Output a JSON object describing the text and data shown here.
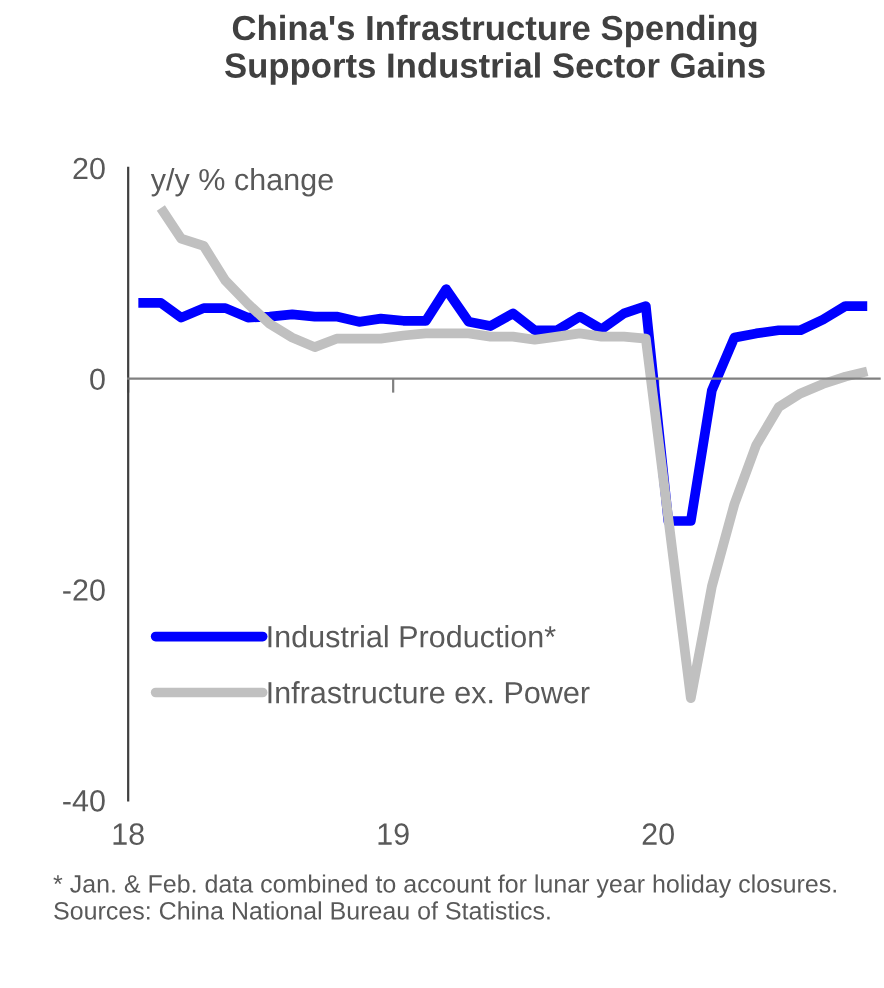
{
  "chart_data": {
    "type": "line",
    "title": "China's Infrastructure Spending\nSupports Industrial Sector Gains",
    "ylabel": "y/y % change",
    "annotations": [
      "* Jan. & Feb. data combined to account for lunar year holiday closures. Sources: China National Bureau of Statistics."
    ],
    "x": [
      "2018-01-15",
      "2018-02-15",
      "2018-03-15",
      "2018-04-15",
      "2018-05-15",
      "2018-06-15",
      "2018-07-15",
      "2018-08-15",
      "2018-09-15",
      "2018-10-15",
      "2018-11-15",
      "2018-12-15",
      "2019-01-15",
      "2019-02-15",
      "2019-03-15",
      "2019-04-15",
      "2019-05-15",
      "2019-06-15",
      "2019-07-15",
      "2019-08-15",
      "2019-09-15",
      "2019-10-15",
      "2019-11-15",
      "2019-12-15",
      "2020-01-15",
      "2020-02-15",
      "2020-03-15",
      "2020-04-15",
      "2020-05-15",
      "2020-06-15",
      "2020-07-15",
      "2020-08-15",
      "2020-09-15",
      "2020-10-15"
    ],
    "series": [
      {
        "name": "Industrial Production*",
        "color": "#0000ff",
        "values": [
          7.2,
          7.2,
          5.8,
          6.7,
          6.7,
          5.8,
          5.9,
          6.1,
          5.9,
          5.9,
          5.4,
          5.7,
          5.5,
          5.5,
          8.5,
          5.4,
          5.0,
          6.2,
          4.6,
          4.6,
          5.9,
          4.7,
          6.2,
          6.9,
          -13.5,
          -13.5,
          -1.1,
          3.9,
          4.3,
          4.6,
          4.6,
          5.6,
          6.9,
          6.9
        ]
      },
      {
        "name": "Infrastructure ex. Power",
        "color": "#c0c0c0",
        "values": [
          null,
          16.2,
          13.3,
          12.6,
          9.3,
          7.1,
          5.2,
          3.9,
          3.0,
          3.8,
          3.8,
          3.8,
          4.1,
          4.3,
          4.3,
          4.3,
          4.0,
          4.0,
          3.7,
          4.0,
          4.3,
          4.0,
          4.0,
          3.8,
          null,
          -30.3,
          -19.7,
          -11.9,
          -6.3,
          -2.7,
          -1.4,
          -0.5,
          0.2,
          0.7
        ]
      }
    ],
    "xlim": [
      "2018-01-01",
      "2020-11-01"
    ],
    "xticks": [
      {
        "value": "2018-01-01",
        "label": "18"
      },
      {
        "value": "2019-01-01",
        "label": "19"
      },
      {
        "value": "2020-01-01",
        "label": "20"
      }
    ],
    "ylim": [
      -40,
      20
    ],
    "yticks": [
      -40,
      -20,
      0,
      20
    ],
    "legend": "bottom left",
    "marker": "none",
    "line_style": "solid"
  }
}
